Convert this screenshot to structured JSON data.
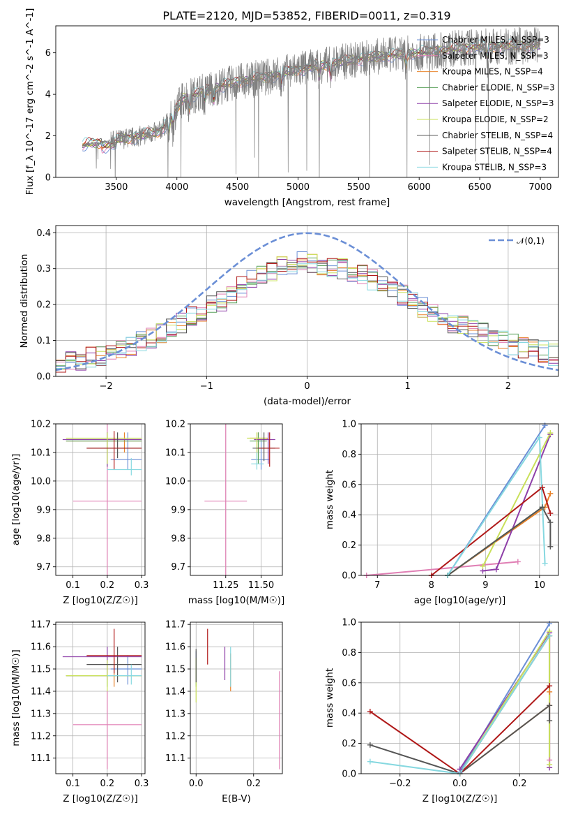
{
  "page": {
    "title": "PLATE=2120, MJD=53852, FIBERID=0011, z=0.319"
  },
  "models": [
    {
      "name": "Chabrier MILES",
      "nssp": 3,
      "color": "#6b8fd6"
    },
    {
      "name": "Salpeter MILES",
      "nssp": 3,
      "color": "#e07fb4"
    },
    {
      "name": "Kroupa MILES",
      "nssp": 4,
      "color": "#e8822a"
    },
    {
      "name": "Chabrier ELODIE",
      "nssp": 3,
      "color": "#59a05a"
    },
    {
      "name": "Salpeter ELODIE",
      "nssp": 3,
      "color": "#8e3fa8"
    },
    {
      "name": "Kroupa ELODIE",
      "nssp": 2,
      "color": "#c9e05a"
    },
    {
      "name": "Chabrier STELIB",
      "nssp": 4,
      "color": "#555555"
    },
    {
      "name": "Salpeter STELIB",
      "nssp": 4,
      "color": "#b01a1a"
    },
    {
      "name": "Kroupa STELIB",
      "nssp": 3,
      "color": "#86d8e0"
    }
  ],
  "chart_data": [
    {
      "id": "spectrum",
      "type": "line",
      "xlabel": "wavelength [Angstrom, rest frame]",
      "ylabel": "Flux [f_λ 10^-17 erg cm^-2 s^-1 A^-1]",
      "xlim": [
        3000,
        7150
      ],
      "ylim": [
        0,
        7.3
      ],
      "xticks": [
        3500,
        4000,
        4500,
        5000,
        5500,
        6000,
        6500,
        7000
      ],
      "yticks": [
        0,
        2,
        4,
        6
      ],
      "grid": false,
      "legend": "top-right",
      "data_range": [
        3220,
        7000
      ],
      "continuum": {
        "x": [
          3220,
          3260,
          3400,
          3500,
          3700,
          3850,
          3950,
          4050,
          4300,
          4500,
          4800,
          5000,
          5300,
          5500,
          5800,
          6000,
          6300,
          6500,
          7000
        ],
        "y": [
          1.5,
          1.6,
          1.7,
          1.8,
          2.0,
          2.2,
          2.8,
          3.8,
          4.3,
          4.6,
          4.9,
          5.2,
          5.5,
          5.7,
          5.9,
          6.0,
          6.2,
          6.3,
          6.35
        ]
      },
      "absorption_features": [
        3934,
        3969,
        4102,
        4227,
        4304,
        4861,
        5175,
        5270,
        5892,
        6563
      ]
    },
    {
      "id": "residuals",
      "type": "line",
      "xlabel": "(data-model)/error",
      "ylabel": "Normed distribution",
      "xlim": [
        -2.5,
        2.5
      ],
      "ylim": [
        0,
        0.42
      ],
      "xticks": [
        -2,
        -1,
        0,
        1,
        2
      ],
      "yticks": [
        0.0,
        0.1,
        0.2,
        0.3,
        0.4
      ],
      "grid": true,
      "legend": "top-right",
      "reference": {
        "label": "𝒩(0,1)",
        "mean": 0,
        "sigma": 1,
        "color": "#6b8fd6"
      },
      "hist_bins": [
        -2.5,
        2.5,
        50
      ],
      "hist_values": [
        0.035,
        0.04,
        0.045,
        0.055,
        0.06,
        0.065,
        0.075,
        0.085,
        0.095,
        0.105,
        0.12,
        0.135,
        0.15,
        0.165,
        0.18,
        0.195,
        0.21,
        0.23,
        0.25,
        0.265,
        0.28,
        0.295,
        0.305,
        0.315,
        0.32,
        0.315,
        0.31,
        0.305,
        0.3,
        0.29,
        0.28,
        0.27,
        0.255,
        0.24,
        0.225,
        0.205,
        0.19,
        0.175,
        0.16,
        0.15,
        0.14,
        0.13,
        0.12,
        0.11,
        0.1,
        0.09,
        0.08,
        0.075,
        0.068,
        0.06
      ]
    },
    {
      "id": "age-vs-z",
      "type": "scatter",
      "xlabel": "Z [log10(Z/Z☉)]",
      "ylabel": "age  [log10(age/yr)]",
      "xlim": [
        0.05,
        0.31
      ],
      "ylim": [
        9.67,
        10.2
      ],
      "xticks": [
        0.1,
        0.2,
        0.3
      ],
      "yticks": [
        9.7,
        9.8,
        9.9,
        10.0,
        10.1,
        10.2
      ],
      "grid": true,
      "points": [
        {
          "model": 0,
          "x": 0.26,
          "y": 10.075,
          "xerr": [
            0.21,
            0.3
          ],
          "yerr": [
            10.04,
            10.17
          ]
        },
        {
          "model": 1,
          "x": 0.2,
          "y": 9.93,
          "xerr": [
            0.1,
            0.3
          ],
          "yerr": [
            9.67,
            10.2
          ]
        },
        {
          "model": 2,
          "x": 0.25,
          "y": 10.14,
          "xerr": [
            0.08,
            0.3
          ],
          "yerr": [
            10.1,
            10.17
          ]
        },
        {
          "model": 3,
          "x": 0.2,
          "y": 10.14,
          "xerr": [
            0.08,
            0.3
          ],
          "yerr": [
            10.05,
            10.17
          ]
        },
        {
          "model": 4,
          "x": 0.2,
          "y": 10.145,
          "xerr": [
            0.07,
            0.3
          ],
          "yerr": [
            10.05,
            10.17
          ]
        },
        {
          "model": 5,
          "x": 0.2,
          "y": 10.15,
          "xerr": [
            0.08,
            0.3
          ],
          "yerr": [
            10.06,
            10.17
          ]
        },
        {
          "model": 6,
          "x": 0.23,
          "y": 10.115,
          "xerr": [
            0.14,
            0.3
          ],
          "yerr": [
            10.08,
            10.17
          ]
        },
        {
          "model": 7,
          "x": 0.22,
          "y": 10.115,
          "xerr": [
            0.14,
            0.3
          ],
          "yerr": [
            10.04,
            10.175
          ]
        },
        {
          "model": 8,
          "x": 0.27,
          "y": 10.04,
          "xerr": [
            0.2,
            0.3
          ],
          "yerr": [
            10.02,
            10.08
          ]
        }
      ]
    },
    {
      "id": "age-vs-mass",
      "type": "scatter",
      "xlabel": "mass [log10(M/M☉)]",
      "ylabel": "",
      "xlim": [
        11.0,
        11.65
      ],
      "ylim": [
        9.67,
        10.2
      ],
      "xticks": [
        11.25,
        11.5
      ],
      "yticks": [
        9.7,
        9.8,
        9.9,
        10.0,
        10.1,
        10.2
      ],
      "grid": true,
      "points": [
        {
          "model": 0,
          "x": 11.5,
          "y": 10.075,
          "xerr": [
            11.43,
            11.56
          ],
          "yerr": [
            10.04,
            10.15
          ]
        },
        {
          "model": 1,
          "x": 11.25,
          "y": 9.93,
          "xerr": [
            11.1,
            11.4
          ],
          "yerr": [
            9.67,
            10.2
          ]
        },
        {
          "model": 2,
          "x": 11.48,
          "y": 10.15,
          "xerr": [
            11.42,
            11.55
          ],
          "yerr": [
            10.1,
            10.17
          ]
        },
        {
          "model": 3,
          "x": 11.48,
          "y": 10.14,
          "xerr": [
            11.42,
            11.54
          ],
          "yerr": [
            10.06,
            10.17
          ]
        },
        {
          "model": 4,
          "x": 11.55,
          "y": 10.145,
          "xerr": [
            11.45,
            11.6
          ],
          "yerr": [
            10.06,
            10.17
          ]
        },
        {
          "model": 5,
          "x": 11.47,
          "y": 10.15,
          "xerr": [
            11.4,
            11.54
          ],
          "yerr": [
            10.06,
            10.17
          ]
        },
        {
          "model": 6,
          "x": 11.52,
          "y": 10.115,
          "xerr": [
            11.44,
            11.6
          ],
          "yerr": [
            10.07,
            10.17
          ]
        },
        {
          "model": 7,
          "x": 11.56,
          "y": 10.115,
          "xerr": [
            11.48,
            11.63
          ],
          "yerr": [
            10.05,
            10.17
          ]
        },
        {
          "model": 8,
          "x": 11.47,
          "y": 10.06,
          "xerr": [
            11.43,
            11.52
          ],
          "yerr": [
            10.04,
            10.1
          ]
        }
      ]
    },
    {
      "id": "weight-vs-age",
      "type": "line",
      "xlabel": "age  [log10(age/yr)]",
      "ylabel": "mass weight",
      "xlim": [
        6.7,
        10.35
      ],
      "ylim": [
        0,
        1
      ],
      "xticks": [
        7,
        8,
        9,
        10
      ],
      "yticks": [
        0.0,
        0.2,
        0.4,
        0.6,
        0.8,
        1.0
      ],
      "grid": true,
      "series": [
        {
          "model": 0,
          "x": [
            8.3,
            10.1
          ],
          "y": [
            0.0,
            0.99
          ]
        },
        {
          "model": 1,
          "x": [
            6.8,
            9.6
          ],
          "y": [
            0.0,
            0.09
          ]
        },
        {
          "model": 2,
          "x": [
            8.3,
            10.1,
            10.2
          ],
          "y": [
            0.0,
            0.45,
            0.54
          ]
        },
        {
          "model": 3,
          "x": [
            8.3,
            10.05
          ],
          "y": [
            0.0,
            0.45
          ]
        },
        {
          "model": 4,
          "x": [
            8.95,
            9.2,
            10.2
          ],
          "y": [
            0.03,
            0.04,
            0.93
          ]
        },
        {
          "model": 5,
          "x": [
            8.95,
            10.2
          ],
          "y": [
            0.06,
            0.94
          ]
        },
        {
          "model": 6,
          "x": [
            8.3,
            10.05,
            10.2,
            10.2
          ],
          "y": [
            0.0,
            0.45,
            0.35,
            0.19
          ]
        },
        {
          "model": 7,
          "x": [
            8.0,
            10.05,
            10.2
          ],
          "y": [
            0.0,
            0.58,
            0.41
          ]
        },
        {
          "model": 8,
          "x": [
            8.3,
            10.0,
            10.1
          ],
          "y": [
            0.0,
            0.91,
            0.08
          ]
        }
      ]
    },
    {
      "id": "mass-vs-z",
      "type": "scatter",
      "xlabel": "Z [log10(Z/Z☉)]",
      "ylabel": "mass [log10(M/M☉)]",
      "xlim": [
        0.05,
        0.31
      ],
      "ylim": [
        11.03,
        11.71
      ],
      "xticks": [
        0.1,
        0.2,
        0.3
      ],
      "yticks": [
        11.1,
        11.2,
        11.3,
        11.4,
        11.5,
        11.6,
        11.7
      ],
      "grid": true,
      "points": [
        {
          "model": 0,
          "x": 0.26,
          "y": 11.5,
          "xerr": [
            0.21,
            0.3
          ],
          "yerr": [
            11.43,
            11.56
          ]
        },
        {
          "model": 1,
          "x": 0.2,
          "y": 11.25,
          "xerr": [
            0.1,
            0.3
          ],
          "yerr": [
            11.05,
            11.4
          ]
        },
        {
          "model": 2,
          "x": 0.22,
          "y": 11.47,
          "xerr": [
            0.08,
            0.3
          ],
          "yerr": [
            11.42,
            11.55
          ]
        },
        {
          "model": 3,
          "x": 0.2,
          "y": 11.47,
          "xerr": [
            0.08,
            0.3
          ],
          "yerr": [
            11.42,
            11.54
          ]
        },
        {
          "model": 4,
          "x": 0.2,
          "y": 11.555,
          "xerr": [
            0.07,
            0.3
          ],
          "yerr": [
            11.45,
            11.6
          ]
        },
        {
          "model": 5,
          "x": 0.2,
          "y": 11.47,
          "xerr": [
            0.08,
            0.3
          ],
          "yerr": [
            11.4,
            11.54
          ]
        },
        {
          "model": 6,
          "x": 0.23,
          "y": 11.52,
          "xerr": [
            0.14,
            0.3
          ],
          "yerr": [
            11.44,
            11.6
          ]
        },
        {
          "model": 7,
          "x": 0.22,
          "y": 11.56,
          "xerr": [
            0.14,
            0.3
          ],
          "yerr": [
            11.48,
            11.68
          ]
        },
        {
          "model": 8,
          "x": 0.27,
          "y": 11.47,
          "xerr": [
            0.2,
            0.3
          ],
          "yerr": [
            11.43,
            11.52
          ]
        }
      ]
    },
    {
      "id": "mass-vs-ebv",
      "type": "scatter",
      "xlabel": "E(B-V)",
      "ylabel": "",
      "xlim": [
        -0.02,
        0.3
      ],
      "ylim": [
        11.03,
        11.71
      ],
      "xticks": [
        0.0,
        0.2
      ],
      "yticks": [
        11.1,
        11.2,
        11.3,
        11.4,
        11.5,
        11.6,
        11.7
      ],
      "grid": true,
      "points": [
        {
          "model": 0,
          "x": 0.0,
          "y": 11.5,
          "yerr": [
            11.43,
            11.58
          ]
        },
        {
          "model": 1,
          "x": 0.29,
          "y": 11.25,
          "yerr": [
            11.05,
            11.49
          ]
        },
        {
          "model": 2,
          "x": 0.12,
          "y": 11.48,
          "yerr": [
            11.4,
            11.57
          ]
        },
        {
          "model": 3,
          "x": 0.0,
          "y": 11.48,
          "yerr": [
            11.42,
            11.55
          ]
        },
        {
          "model": 4,
          "x": 0.1,
          "y": 11.555,
          "yerr": [
            11.45,
            11.6
          ]
        },
        {
          "model": 5,
          "x": 0.0,
          "y": 11.47,
          "yerr": [
            11.35,
            11.55
          ]
        },
        {
          "model": 6,
          "x": 0.0,
          "y": 11.52,
          "yerr": [
            11.44,
            11.59
          ]
        },
        {
          "model": 7,
          "x": 0.04,
          "y": 11.6,
          "yerr": [
            11.52,
            11.68
          ]
        },
        {
          "model": 8,
          "x": 0.12,
          "y": 11.5,
          "yerr": [
            11.42,
            11.6
          ]
        }
      ]
    },
    {
      "id": "weight-vs-z",
      "type": "line",
      "xlabel": "Z [log10(Z/Z☉)]",
      "ylabel": "mass weight",
      "xlim": [
        -0.33,
        0.33
      ],
      "ylim": [
        0,
        1
      ],
      "xticks": [
        -0.2,
        0.0,
        0.2
      ],
      "yticks": [
        0.0,
        0.2,
        0.4,
        0.6,
        0.8,
        1.0
      ],
      "grid": true,
      "series": [
        {
          "model": 0,
          "x": [
            0.0,
            0.3
          ],
          "y": [
            0.01,
            0.99
          ]
        },
        {
          "model": 1,
          "x": [
            0.0,
            0.3,
            0.3
          ],
          "y": [
            0.0,
            0.91,
            0.09
          ]
        },
        {
          "model": 2,
          "x": [
            0.0,
            0.3,
            0.3
          ],
          "y": [
            0.0,
            0.45,
            0.54
          ]
        },
        {
          "model": 3,
          "x": [
            0.0,
            0.3
          ],
          "y": [
            0.0,
            0.91
          ]
        },
        {
          "model": 4,
          "x": [
            0.0,
            0.3,
            0.3
          ],
          "y": [
            0.03,
            0.93,
            0.04
          ]
        },
        {
          "model": 5,
          "x": [
            0.0,
            0.3,
            0.3
          ],
          "y": [
            0.0,
            0.94,
            0.06
          ]
        },
        {
          "model": 6,
          "x": [
            -0.3,
            0.0,
            0.3,
            0.3
          ],
          "y": [
            0.19,
            0.0,
            0.45,
            0.35
          ]
        },
        {
          "model": 7,
          "x": [
            -0.3,
            0.0,
            0.3
          ],
          "y": [
            0.41,
            0.0,
            0.58
          ]
        },
        {
          "model": 8,
          "x": [
            -0.3,
            0.0,
            0.3
          ],
          "y": [
            0.08,
            0.0,
            0.91
          ]
        }
      ]
    }
  ]
}
